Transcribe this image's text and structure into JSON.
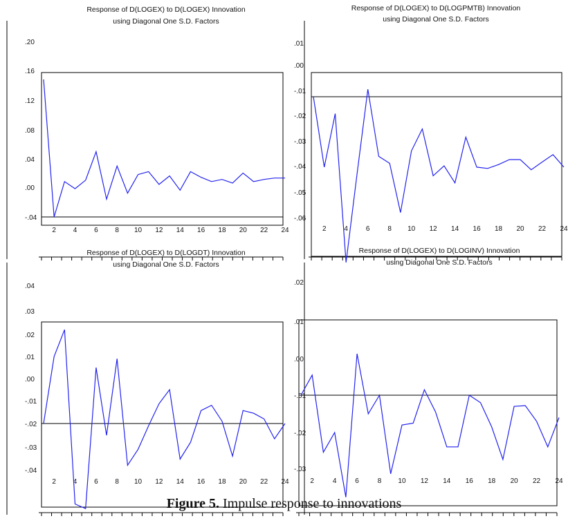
{
  "figure_caption": {
    "label": "Figure 5.",
    "text": " Impulse response to innovations"
  },
  "colors": {
    "series": "#2222ee",
    "axis": "#000000",
    "reference_line": "#000000",
    "background": "#ffffff"
  },
  "chart_data": [
    {
      "type": "line",
      "title": "Response of D(LOGEX) to D(LOGEX) Innovation",
      "subtitle": "using Diagonal One S.D. Factors",
      "xlabel": "",
      "ylabel": "",
      "x": [
        1,
        2,
        3,
        4,
        5,
        6,
        7,
        8,
        9,
        10,
        11,
        12,
        13,
        14,
        15,
        16,
        17,
        18,
        19,
        20,
        21,
        22,
        23,
        24
      ],
      "x_tick_labels": [
        "2",
        "4",
        "6",
        "8",
        "10",
        "12",
        "14",
        "16",
        "18",
        "20",
        "22",
        "24"
      ],
      "y_tick_labels": [
        ".20",
        ".16",
        ".12",
        ".08",
        ".04",
        ".00",
        "-.04"
      ],
      "y_ticks": [
        0.2,
        0.16,
        0.12,
        0.08,
        0.04,
        0.0,
        -0.04
      ],
      "ylim": [
        -0.04,
        0.2
      ],
      "reference_line": -0.04,
      "grid": false,
      "series": [
        {
          "values": [
            0.148,
            -0.04,
            0.008,
            -0.002,
            0.01,
            0.05,
            -0.016,
            0.03,
            -0.008,
            0.018,
            0.022,
            0.004,
            0.016,
            -0.004,
            0.022,
            0.014,
            0.008,
            0.011,
            0.006,
            0.02,
            0.008,
            0.011,
            0.013,
            0.013
          ]
        }
      ]
    },
    {
      "type": "line",
      "title": "Response of D(LOGEX) to D(LOGPMTB) Innovation",
      "subtitle": "using Diagonal One S.D. Factors",
      "xlabel": "",
      "ylabel": "",
      "x": [
        1,
        2,
        3,
        4,
        5,
        6,
        7,
        8,
        9,
        10,
        11,
        12,
        13,
        14,
        15,
        16,
        17,
        18,
        19,
        20,
        21,
        22,
        23,
        24
      ],
      "x_tick_labels": [
        "2",
        "4",
        "6",
        "8",
        "10",
        "12",
        "14",
        "16",
        "18",
        "20",
        "22",
        "24"
      ],
      "y_tick_labels": [
        ".01",
        ".00",
        "-.01",
        "-.02",
        "-.03",
        "-.04",
        "-.05",
        "-.06"
      ],
      "y_ticks": [
        0.01,
        0.0,
        -0.01,
        -0.02,
        -0.03,
        -0.04,
        -0.05,
        -0.06
      ],
      "ylim": [
        -0.06,
        0.01
      ],
      "reference_line": -0.0125,
      "grid": false,
      "series": [
        {
          "values": [
            -0.0125,
            -0.0405,
            -0.0193,
            -0.0775,
            -0.0433,
            -0.0095,
            -0.0362,
            -0.039,
            -0.058,
            -0.034,
            -0.0253,
            -0.0438,
            -0.04,
            -0.0465,
            -0.0285,
            -0.0405,
            -0.041,
            -0.0395,
            -0.0375,
            -0.0375,
            -0.0415,
            -0.0385,
            -0.0355,
            -0.0405
          ]
        }
      ]
    },
    {
      "type": "line",
      "title": "Response of D(LOGEX) to D(LOGDT) Innovation",
      "subtitle": "using Diagonal One S.D. Factors",
      "xlabel": "",
      "ylabel": "",
      "x": [
        1,
        2,
        3,
        4,
        5,
        6,
        7,
        8,
        9,
        10,
        11,
        12,
        13,
        14,
        15,
        16,
        17,
        18,
        19,
        20,
        21,
        22,
        23,
        24
      ],
      "x_tick_labels": [
        "2",
        "4",
        "6",
        "8",
        "10",
        "12",
        "14",
        "16",
        "18",
        "20",
        "22",
        "24"
      ],
      "y_tick_labels": [
        ".04",
        ".03",
        ".02",
        ".01",
        ".00",
        "-.01",
        "-.02",
        "-.03",
        "-.04"
      ],
      "y_ticks": [
        0.04,
        0.03,
        0.02,
        0.01,
        0.0,
        -0.01,
        -0.02,
        -0.03,
        -0.04
      ],
      "ylim": [
        -0.04,
        0.04
      ],
      "reference_line": -0.02,
      "grid": false,
      "series": [
        {
          "values": [
            -0.02,
            0.01,
            0.022,
            -0.055,
            -0.057,
            0.005,
            -0.025,
            0.009,
            -0.038,
            -0.031,
            -0.021,
            -0.0113,
            -0.005,
            -0.0353,
            -0.028,
            -0.0143,
            -0.012,
            -0.019,
            -0.034,
            -0.0143,
            -0.0155,
            -0.018,
            -0.0265,
            -0.02
          ]
        }
      ]
    },
    {
      "type": "line",
      "title": "Response of D(LOGEX) to D(LOGINV) Innovation",
      "subtitle": "using Diagonal One S.D. Factors",
      "xlabel": "",
      "ylabel": "",
      "x": [
        1,
        2,
        3,
        4,
        5,
        6,
        7,
        8,
        9,
        10,
        11,
        12,
        13,
        14,
        15,
        16,
        17,
        18,
        19,
        20,
        21,
        22,
        23,
        24
      ],
      "x_tick_labels": [
        "2",
        "4",
        "6",
        "8",
        "10",
        "12",
        "14",
        "16",
        "18",
        "20",
        "22",
        "24"
      ],
      "y_tick_labels": [
        ".02",
        ".01",
        ".00",
        "-.01",
        "-.02",
        "-.03"
      ],
      "y_ticks": [
        0.02,
        0.01,
        0.0,
        -0.01,
        -0.02,
        -0.03
      ],
      "ylim": [
        -0.03,
        0.02
      ],
      "reference_line": -0.01,
      "grid": false,
      "series": [
        {
          "values": [
            -0.01,
            -0.0045,
            -0.0255,
            -0.02,
            -0.038,
            0.0013,
            -0.015,
            -0.01,
            -0.0315,
            -0.018,
            -0.0175,
            -0.0085,
            -0.0145,
            -0.024,
            -0.024,
            -0.01,
            -0.012,
            -0.0185,
            -0.0275,
            -0.013,
            -0.0128,
            -0.017,
            -0.024,
            -0.016
          ]
        }
      ]
    }
  ]
}
